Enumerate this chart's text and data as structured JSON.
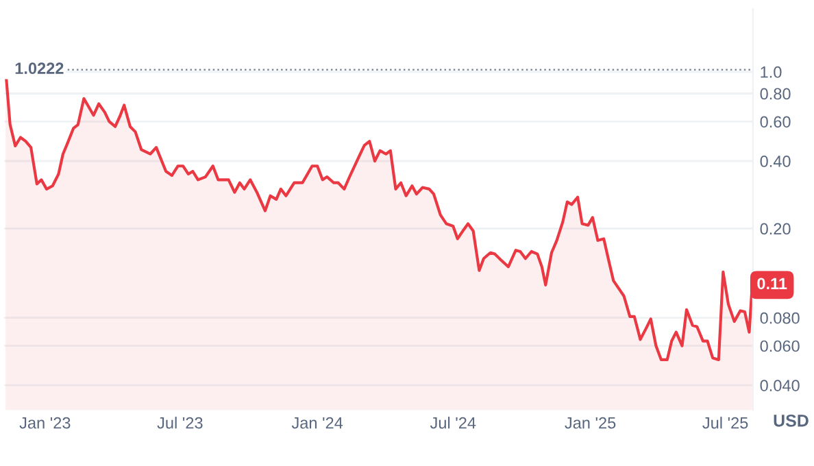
{
  "chart_data": {
    "type": "area",
    "ylabel": "USD",
    "log": "y",
    "grid": "y",
    "legend": false,
    "x": [
      "2022-11-09",
      "2022-11-15",
      "2022-11-22",
      "2022-11-29",
      "2022-12-06",
      "2022-12-13",
      "2022-12-21",
      "2022-12-27",
      "2023-01-03",
      "2023-01-11",
      "2023-01-19",
      "2023-01-25",
      "2023-01-31",
      "2023-02-08",
      "2023-02-14",
      "2023-02-22",
      "2023-03-07",
      "2023-03-14",
      "2023-03-22",
      "2023-03-28",
      "2023-04-05",
      "2023-04-11",
      "2023-04-17",
      "2023-04-25",
      "2023-05-02",
      "2023-05-10",
      "2023-05-22",
      "2023-05-30",
      "2023-06-12",
      "2023-06-20",
      "2023-06-28",
      "2023-07-05",
      "2023-07-12",
      "2023-07-18",
      "2023-07-25",
      "2023-08-04",
      "2023-08-14",
      "2023-08-21",
      "2023-09-04",
      "2023-09-12",
      "2023-09-19",
      "2023-09-25",
      "2023-10-03",
      "2023-10-12",
      "2023-10-23",
      "2023-10-30",
      "2023-11-07",
      "2023-11-13",
      "2023-11-20",
      "2023-12-01",
      "2023-12-12",
      "2023-12-25",
      "2024-01-01",
      "2024-01-08",
      "2024-01-14",
      "2024-01-23",
      "2024-01-29",
      "2024-02-06",
      "2024-02-14",
      "2024-02-26",
      "2024-03-04",
      "2024-03-11",
      "2024-03-18",
      "2024-03-25",
      "2024-04-02",
      "2024-04-08",
      "2024-04-15",
      "2024-04-22",
      "2024-04-29",
      "2024-05-07",
      "2024-05-13",
      "2024-05-21",
      "2024-05-30",
      "2024-06-05",
      "2024-06-14",
      "2024-06-22",
      "2024-07-01",
      "2024-07-07",
      "2024-07-14",
      "2024-07-21",
      "2024-07-28",
      "2024-08-05",
      "2024-08-11",
      "2024-08-20",
      "2024-08-26",
      "2024-09-03",
      "2024-09-13",
      "2024-09-23",
      "2024-09-29",
      "2024-10-06",
      "2024-10-14",
      "2024-10-22",
      "2024-10-28",
      "2024-11-02",
      "2024-11-10",
      "2024-11-17",
      "2024-11-25",
      "2024-12-01",
      "2024-12-07",
      "2024-12-15",
      "2024-12-21",
      "2024-12-29",
      "2025-01-04",
      "2025-01-11",
      "2025-01-19",
      "2025-01-25",
      "2025-02-01",
      "2025-02-09",
      "2025-02-15",
      "2025-02-23",
      "2025-03-01",
      "2025-03-09",
      "2025-03-17",
      "2025-03-23",
      "2025-03-30",
      "2025-04-06",
      "2025-04-14",
      "2025-04-20",
      "2025-04-26",
      "2025-05-04",
      "2025-05-10",
      "2025-05-18",
      "2025-05-24",
      "2025-06-01",
      "2025-06-07",
      "2025-06-14",
      "2025-06-22",
      "2025-06-28",
      "2025-07-05",
      "2025-07-13",
      "2025-07-21",
      "2025-07-27",
      "2025-08-02",
      "2025-08-06"
    ],
    "series": [
      {
        "color": "#ea3943",
        "values": [
          1.0222,
          0.583,
          0.467,
          0.51,
          0.49,
          0.46,
          0.316,
          0.33,
          0.3,
          0.31,
          0.35,
          0.43,
          0.48,
          0.56,
          0.58,
          0.76,
          0.64,
          0.72,
          0.66,
          0.6,
          0.57,
          0.63,
          0.71,
          0.57,
          0.54,
          0.45,
          0.43,
          0.46,
          0.36,
          0.345,
          0.38,
          0.38,
          0.35,
          0.36,
          0.33,
          0.34,
          0.38,
          0.33,
          0.33,
          0.29,
          0.32,
          0.3,
          0.33,
          0.29,
          0.24,
          0.28,
          0.27,
          0.3,
          0.28,
          0.32,
          0.32,
          0.38,
          0.38,
          0.33,
          0.34,
          0.32,
          0.32,
          0.3,
          0.345,
          0.42,
          0.47,
          0.49,
          0.4,
          0.445,
          0.43,
          0.445,
          0.3,
          0.32,
          0.28,
          0.31,
          0.285,
          0.305,
          0.3,
          0.285,
          0.23,
          0.21,
          0.205,
          0.18,
          0.195,
          0.21,
          0.195,
          0.13,
          0.147,
          0.156,
          0.154,
          0.145,
          0.135,
          0.16,
          0.158,
          0.147,
          0.158,
          0.154,
          0.135,
          0.112,
          0.156,
          0.177,
          0.214,
          0.263,
          0.256,
          0.276,
          0.21,
          0.207,
          0.224,
          0.177,
          0.18,
          0.147,
          0.117,
          0.107,
          0.1,
          0.081,
          0.081,
          0.064,
          0.072,
          0.079,
          0.06,
          0.052,
          0.052,
          0.063,
          0.069,
          0.06,
          0.087,
          0.074,
          0.073,
          0.063,
          0.063,
          0.053,
          0.052,
          0.128,
          0.092,
          0.077,
          0.086,
          0.085,
          0.069,
          0.112
        ]
      }
    ],
    "xlim": [
      "2022-11-07",
      "2025-08-07"
    ],
    "xticks": [
      {
        "value": "2023-01-01",
        "label": "Jan '23"
      },
      {
        "value": "2023-07-01",
        "label": "Jul '23"
      },
      {
        "value": "2024-01-01",
        "label": "Jan '24"
      },
      {
        "value": "2024-07-01",
        "label": "Jul '24"
      },
      {
        "value": "2025-01-01",
        "label": "Jan '25"
      },
      {
        "value": "2025-07-01",
        "label": "Jul '25"
      }
    ],
    "ylim": [
      0.031,
      1.9
    ],
    "yticks": [
      {
        "value": 0.04,
        "label": "0.040"
      },
      {
        "value": 0.06,
        "label": "0.060"
      },
      {
        "value": 0.08,
        "label": "0.080"
      },
      {
        "value": 0.2,
        "label": "0.20"
      },
      {
        "value": 0.4,
        "label": "0.40"
      },
      {
        "value": 0.6,
        "label": "0.60"
      },
      {
        "value": 0.8,
        "label": "0.80"
      },
      {
        "value": 1.0,
        "label": "1.0"
      }
    ],
    "ref_lines": [
      {
        "axis": "y",
        "value": 1.0222,
        "label": "1.0222",
        "color": "#808a9d",
        "line_style": "dotted"
      }
    ],
    "annotations": [
      {
        "text": "0.11",
        "x": "2025-08-06",
        "y": 0.112
      }
    ]
  }
}
